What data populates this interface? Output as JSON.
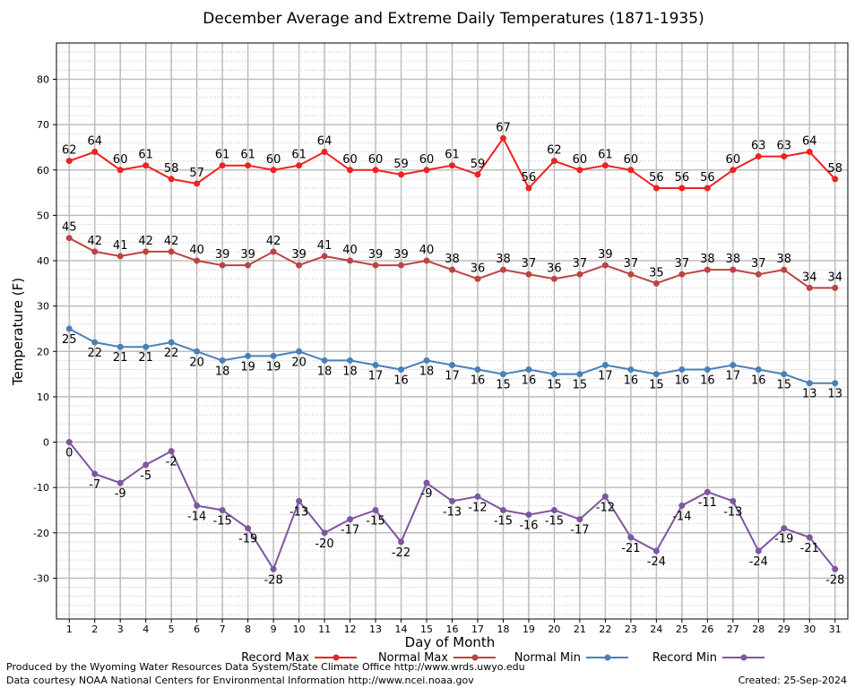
{
  "chart_data": {
    "type": "line",
    "title": "December Average and Extreme Daily Temperatures (1871-1935)",
    "xlabel": "Day of Month",
    "ylabel": "Temperature (F)",
    "x": [
      1,
      2,
      3,
      4,
      5,
      6,
      7,
      8,
      9,
      10,
      11,
      12,
      13,
      14,
      15,
      16,
      17,
      18,
      19,
      20,
      21,
      22,
      23,
      24,
      25,
      26,
      27,
      28,
      29,
      30,
      31
    ],
    "xlim": [
      0.5,
      31.5
    ],
    "ylim": [
      -39,
      88
    ],
    "yticks": [
      -30,
      -20,
      -10,
      0,
      10,
      20,
      30,
      40,
      50,
      60,
      70,
      80
    ],
    "grid": true,
    "legend_position": "bottom",
    "series": [
      {
        "name": "Record Max",
        "color": "#ee2222",
        "label_pos": "above",
        "values": [
          62,
          64,
          60,
          61,
          58,
          57,
          61,
          61,
          60,
          61,
          64,
          60,
          60,
          59,
          60,
          61,
          59,
          67,
          56,
          62,
          60,
          61,
          60,
          56,
          56,
          56,
          60,
          63,
          63,
          64,
          58
        ]
      },
      {
        "name": "Normal Max",
        "color": "#bb4444",
        "label_pos": "above",
        "values": [
          45,
          42,
          41,
          42,
          42,
          40,
          39,
          39,
          42,
          39,
          41,
          40,
          39,
          39,
          40,
          38,
          36,
          38,
          37,
          36,
          37,
          39,
          37,
          35,
          37,
          38,
          38,
          37,
          38,
          34,
          34
        ]
      },
      {
        "name": "Normal Min",
        "color": "#4a80b8",
        "label_pos": "below",
        "values": [
          25,
          22,
          21,
          21,
          22,
          20,
          18,
          19,
          19,
          20,
          18,
          18,
          17,
          16,
          18,
          17,
          16,
          15,
          16,
          15,
          15,
          17,
          16,
          15,
          16,
          16,
          17,
          16,
          15,
          13,
          13
        ]
      },
      {
        "name": "Record Min",
        "color": "#7e55a0",
        "label_pos": "below",
        "values": [
          0,
          -7,
          -9,
          -5,
          -2,
          -14,
          -15,
          -19,
          -28,
          -13,
          -20,
          -17,
          -15,
          -22,
          -9,
          -13,
          -12,
          -15,
          -16,
          -15,
          -17,
          -12,
          -21,
          -24,
          -14,
          -11,
          -13,
          -24,
          -19,
          -21,
          -28
        ]
      }
    ]
  },
  "footer": {
    "credit_line1": "Produced by the Wyoming Water Resources Data System/State Climate Office http://www.wrds.uwyo.edu",
    "credit_line2": "Data courtesy NOAA National Centers for Environmental Information http://www.ncei.noaa.gov",
    "created": "Created:  25-Sep-2024"
  }
}
